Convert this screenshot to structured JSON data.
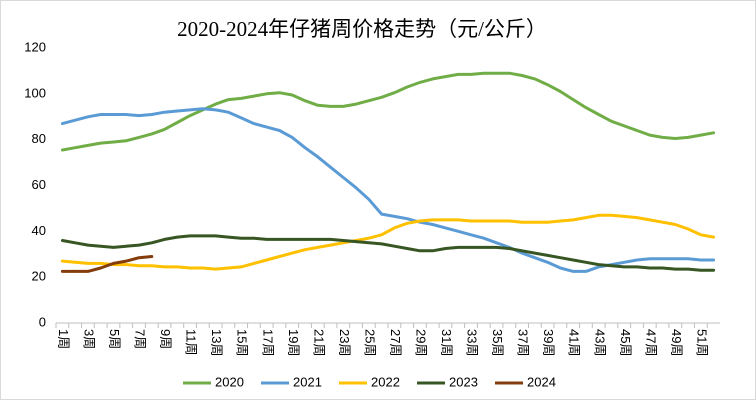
{
  "chart_data": {
    "type": "line",
    "title": "2020-2024年仔猪周价格走势（元/公斤）",
    "categories": [
      "1周",
      null,
      "3周",
      null,
      "5周",
      null,
      "7周",
      null,
      "9周",
      null,
      "11周",
      null,
      "13周",
      null,
      "15周",
      null,
      "17周",
      null,
      "19周",
      null,
      "21周",
      null,
      "23周",
      null,
      "25周",
      null,
      "27周",
      null,
      "29周",
      null,
      "31周",
      null,
      "33周",
      null,
      "35周",
      null,
      "37周",
      null,
      "39周",
      null,
      "41周",
      null,
      "43周",
      null,
      "45周",
      null,
      "47周",
      null,
      "49周",
      null,
      "51周",
      null
    ],
    "series": [
      {
        "name": "2020",
        "color": "#70ad47",
        "values": [
          75.5,
          76.5,
          77.5,
          78.5,
          79,
          79.5,
          81,
          82.5,
          84.5,
          87.5,
          90.5,
          93,
          95.5,
          97.5,
          98,
          99,
          100,
          100.5,
          99.5,
          97,
          95,
          94.5,
          94.5,
          95.5,
          97,
          98.5,
          100.5,
          103,
          105,
          106.5,
          107.5,
          108.5,
          108.5,
          109,
          109,
          109,
          108,
          106.5,
          104,
          101,
          97.5,
          94,
          91,
          88,
          86,
          84,
          82,
          81,
          80.5,
          81,
          82,
          83
        ]
      },
      {
        "name": "2021",
        "color": "#5b9bd5",
        "values": [
          87,
          88.5,
          90,
          91,
          91,
          91,
          90.5,
          91,
          92,
          92.5,
          93,
          93.5,
          93,
          92,
          89.5,
          87,
          85.5,
          84,
          81,
          76.5,
          72.5,
          68,
          63.5,
          59,
          54,
          47.5,
          46.5,
          45.5,
          44,
          43,
          41.5,
          40,
          38.5,
          37,
          35,
          33,
          30.5,
          28.5,
          26.5,
          24,
          22.5,
          22.5,
          24.5,
          25.5,
          26.5,
          27.5,
          28,
          28,
          28,
          28,
          27.5,
          27.5
        ]
      },
      {
        "name": "2022",
        "color": "#ffc000",
        "values": [
          27,
          26.5,
          26,
          26,
          25.5,
          25.5,
          25,
          25,
          24.5,
          24.5,
          24,
          24,
          23.5,
          24,
          24.5,
          26,
          27.5,
          29,
          30.5,
          32,
          33,
          34,
          35,
          36,
          37,
          38.5,
          41.5,
          43.5,
          44.5,
          45,
          45,
          45,
          44.5,
          44.5,
          44.5,
          44.5,
          44,
          44,
          44,
          44.5,
          45,
          46,
          47,
          47,
          46.5,
          46,
          45,
          44,
          43,
          41,
          38.5,
          37.5
        ]
      },
      {
        "name": "2023",
        "color": "#375623",
        "values": [
          36,
          35,
          34,
          33.5,
          33,
          33.5,
          34,
          35,
          36.5,
          37.5,
          38,
          38,
          38,
          37.5,
          37,
          37,
          36.5,
          36.5,
          36.5,
          36.5,
          36.5,
          36.5,
          36,
          35.5,
          35,
          34.5,
          33.5,
          32.5,
          31.5,
          31.5,
          32.5,
          33,
          33,
          33,
          33,
          32.5,
          31.5,
          30.5,
          29.5,
          28.5,
          27.5,
          26.5,
          25.5,
          25,
          24.5,
          24.5,
          24,
          24,
          23.5,
          23.5,
          23,
          23
        ]
      },
      {
        "name": "2024",
        "color": "#843c0c",
        "values": [
          22.5,
          22.5,
          22.5,
          24,
          26,
          27,
          28.5,
          29,
          null,
          null,
          null,
          null,
          null,
          null,
          null,
          null,
          null,
          null,
          null,
          null,
          null,
          null,
          null,
          null,
          null,
          null,
          null,
          null,
          null,
          null,
          null,
          null,
          null,
          null,
          null,
          null,
          null,
          null,
          null,
          null,
          null,
          null,
          null,
          null,
          null,
          null,
          null,
          null,
          null,
          null,
          null,
          null
        ]
      }
    ],
    "ylim": [
      0,
      120
    ],
    "yticks": [
      0,
      20,
      40,
      60,
      80,
      100,
      120
    ],
    "grid": false,
    "legend": "bottom"
  }
}
